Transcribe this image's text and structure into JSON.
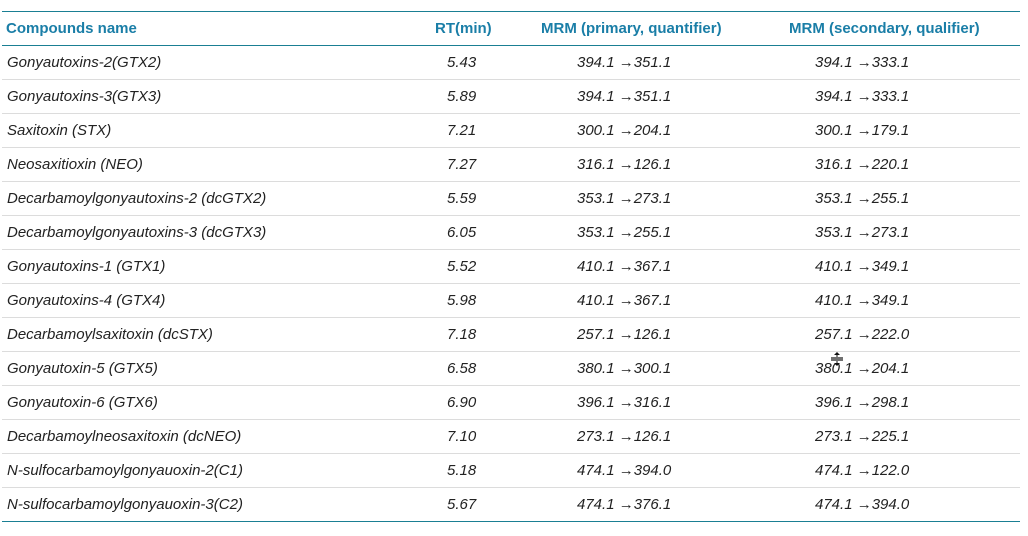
{
  "table": {
    "headers": {
      "name": "Compounds name",
      "rt": "RT(min)",
      "primary": "MRM (primary, quantifier)",
      "secondary": "MRM (secondary, qualifier)"
    },
    "rows": [
      {
        "name": "Gonyautoxins-2(GTX2)",
        "rt": "5.43",
        "primary": "394.1 →351.1",
        "secondary": "394.1 →333.1"
      },
      {
        "name": "Gonyautoxins-3(GTX3)",
        "rt": "5.89",
        "primary": "394.1 →351.1",
        "secondary": "394.1 →333.1"
      },
      {
        "name": "Saxitoxin (STX)",
        "rt": "7.21",
        "primary": "300.1 →204.1",
        "secondary": "300.1 →179.1"
      },
      {
        "name": "Neosaxitioxin (NEO)",
        "rt": "7.27",
        "primary": "316.1 →126.1",
        "secondary": "316.1 →220.1"
      },
      {
        "name": "Decarbamoylgonyautoxins-2 (dcGTX2)",
        "rt": "5.59",
        "primary": "353.1 →273.1",
        "secondary": "353.1 →255.1"
      },
      {
        "name": "Decarbamoylgonyautoxins-3 (dcGTX3)",
        "rt": "6.05",
        "primary": "353.1 →255.1",
        "secondary": "353.1 →273.1"
      },
      {
        "name": "Gonyautoxins-1 (GTX1)",
        "rt": "5.52",
        "primary": "410.1 →367.1",
        "secondary": "410.1 →349.1"
      },
      {
        "name": "Gonyautoxins-4 (GTX4)",
        "rt": "5.98",
        "primary": "410.1 →367.1",
        "secondary": "410.1 →349.1"
      },
      {
        "name": "Decarbamoylsaxitoxin (dcSTX)",
        "rt": "7.18",
        "primary": "257.1 →126.1",
        "secondary": "257.1 →222.0"
      },
      {
        "name": "Gonyautoxin-5 (GTX5)",
        "rt": "6.58",
        "primary": "380.1 →300.1",
        "secondary": "380.1 →204.1"
      },
      {
        "name": "Gonyautoxin-6 (GTX6)",
        "rt": "6.90",
        "primary": "396.1 →316.1",
        "secondary": "396.1 →298.1"
      },
      {
        "name": "Decarbamoylneosaxitoxin (dcNEO)",
        "rt": "7.10",
        "primary": "273.1 →126.1",
        "secondary": "273.1 →225.1"
      },
      {
        "name": "N-sulfocarbamoylgonyauoxin-2(C1)",
        "rt": "5.18",
        "primary": "474.1 →394.0",
        "secondary": "474.1 →122.0"
      },
      {
        "name": "N-sulfocarbamoylgonyauoxin-3(C2)",
        "rt": "5.67",
        "primary": "474.1 →376.1",
        "secondary": "474.1 →394.0"
      }
    ]
  },
  "colors": {
    "header_text": "#1a7ea7",
    "rule": "#1a7f93",
    "row_divider": "#dcdcdc",
    "body_text": "#222222"
  },
  "cursor": {
    "icon": "row-resize-cursor-icon"
  }
}
